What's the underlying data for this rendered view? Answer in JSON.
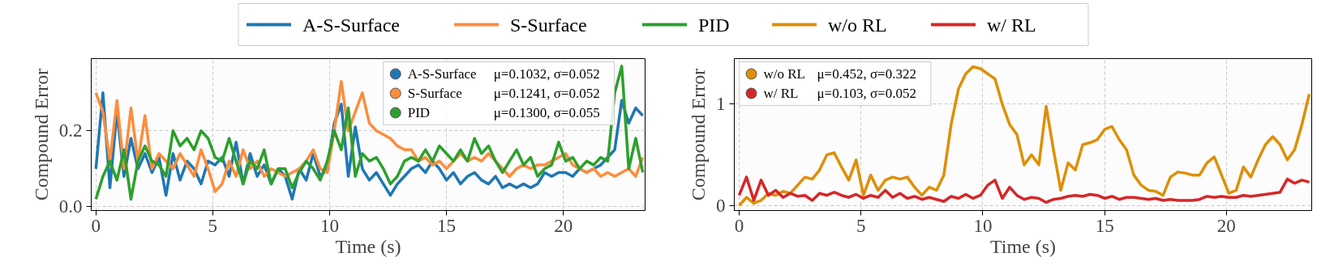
{
  "chart_data": [
    {
      "type": "line",
      "xlabel": "Time (s)",
      "ylabel": "Compound Error",
      "xlim": [
        -0.2,
        23.5
      ],
      "ylim": [
        -0.01,
        0.39
      ],
      "xticks": [
        0,
        5,
        10,
        15,
        20
      ],
      "yticks": [
        {
          "value": 0,
          "label": "0.0"
        },
        0.2
      ],
      "grid": true,
      "legend": "top right",
      "line_style": "solid",
      "annotations": [
        "μ=0.1032, σ=0.052",
        "μ=0.1241, σ=0.052",
        "μ=0.1300, σ=0.055"
      ],
      "x": [
        0,
        0.3,
        0.6,
        0.9,
        1.2,
        1.5,
        1.8,
        2.1,
        2.4,
        2.7,
        3.0,
        3.3,
        3.6,
        3.9,
        4.2,
        4.5,
        4.8,
        5.1,
        5.4,
        5.7,
        6.0,
        6.3,
        6.6,
        6.9,
        7.2,
        7.5,
        7.8,
        8.1,
        8.4,
        8.7,
        9.0,
        9.3,
        9.6,
        9.9,
        10.2,
        10.5,
        10.8,
        11.1,
        11.4,
        11.7,
        12.0,
        12.3,
        12.6,
        12.9,
        13.2,
        13.5,
        13.8,
        14.1,
        14.4,
        14.7,
        15.0,
        15.3,
        15.6,
        15.9,
        16.2,
        16.5,
        16.8,
        17.1,
        17.4,
        17.7,
        18.0,
        18.3,
        18.6,
        18.9,
        19.2,
        19.5,
        19.8,
        20.1,
        20.4,
        20.7,
        21.0,
        21.3,
        21.6,
        21.9,
        22.2,
        22.5,
        22.8,
        23.1,
        23.4
      ],
      "series": [
        {
          "name": "A-S-Surface",
          "color": "#1f77b4",
          "values": [
            0.1,
            0.3,
            0.05,
            0.25,
            0.08,
            0.18,
            0.1,
            0.14,
            0.09,
            0.13,
            0.03,
            0.14,
            0.07,
            0.12,
            0.1,
            0.06,
            0.12,
            0.11,
            0.13,
            0.08,
            0.17,
            0.06,
            0.14,
            0.08,
            0.11,
            0.06,
            0.1,
            0.08,
            0.02,
            0.1,
            0.07,
            0.14,
            0.08,
            0.1,
            0.22,
            0.27,
            0.08,
            0.21,
            0.1,
            0.07,
            0.09,
            0.06,
            0.03,
            0.06,
            0.08,
            0.1,
            0.11,
            0.09,
            0.12,
            0.1,
            0.07,
            0.09,
            0.06,
            0.08,
            0.09,
            0.07,
            0.06,
            0.08,
            0.05,
            0.06,
            0.05,
            0.06,
            0.05,
            0.06,
            0.09,
            0.08,
            0.09,
            0.09,
            0.08,
            0.1,
            0.09,
            0.1,
            0.11,
            0.13,
            0.15,
            0.28,
            0.22,
            0.26,
            0.24
          ]
        },
        {
          "name": "S-Surface",
          "color": "#fd8d3c",
          "values": [
            0.3,
            0.25,
            0.12,
            0.28,
            0.1,
            0.26,
            0.12,
            0.24,
            0.1,
            0.14,
            0.12,
            0.1,
            0.14,
            0.11,
            0.08,
            0.15,
            0.1,
            0.04,
            0.06,
            0.12,
            0.08,
            0.15,
            0.1,
            0.12,
            0.08,
            0.1,
            0.09,
            0.08,
            0.09,
            0.1,
            0.12,
            0.15,
            0.1,
            0.09,
            0.2,
            0.33,
            0.2,
            0.25,
            0.3,
            0.22,
            0.2,
            0.19,
            0.18,
            0.16,
            0.15,
            0.15,
            0.12,
            0.13,
            0.11,
            0.12,
            0.1,
            0.12,
            0.14,
            0.12,
            0.13,
            0.12,
            0.14,
            0.12,
            0.1,
            0.08,
            0.1,
            0.11,
            0.1,
            0.11,
            0.11,
            0.12,
            0.13,
            0.14,
            0.11,
            0.1,
            0.09,
            0.1,
            0.08,
            0.09,
            0.08,
            0.09,
            0.1,
            0.08,
            0.13
          ]
        },
        {
          "name": "PID",
          "color": "#2ca02c",
          "values": [
            0.02,
            0.08,
            0.12,
            0.07,
            0.15,
            0.02,
            0.12,
            0.16,
            0.12,
            0.11,
            0.08,
            0.2,
            0.16,
            0.18,
            0.15,
            0.2,
            0.18,
            0.13,
            0.12,
            0.18,
            0.12,
            0.06,
            0.12,
            0.1,
            0.15,
            0.06,
            0.1,
            0.1,
            0.05,
            0.09,
            0.12,
            0.1,
            0.07,
            0.12,
            0.2,
            0.15,
            0.26,
            0.08,
            0.14,
            0.12,
            0.13,
            0.1,
            0.06,
            0.08,
            0.12,
            0.13,
            0.12,
            0.15,
            0.12,
            0.16,
            0.14,
            0.12,
            0.15,
            0.12,
            0.18,
            0.14,
            0.16,
            0.12,
            0.09,
            0.12,
            0.15,
            0.11,
            0.13,
            0.08,
            0.1,
            0.11,
            0.17,
            0.12,
            0.13,
            0.1,
            0.12,
            0.11,
            0.13,
            0.12,
            0.3,
            0.37,
            0.1,
            0.18,
            0.09
          ]
        }
      ]
    },
    {
      "type": "line",
      "xlabel": "Time (s)",
      "ylabel": "Compound Error",
      "xlim": [
        -0.2,
        23.5
      ],
      "ylim": [
        -0.05,
        1.45
      ],
      "xticks": [
        0,
        5,
        10,
        15,
        20
      ],
      "yticks": [
        0,
        1
      ],
      "grid": true,
      "legend": "top left",
      "line_style": "solid",
      "annotations": [
        "μ=0.452, σ=0.322",
        "μ=0.103, σ=0.052"
      ],
      "x": [
        0,
        0.3,
        0.6,
        0.9,
        1.2,
        1.5,
        1.8,
        2.1,
        2.4,
        2.7,
        3.0,
        3.3,
        3.6,
        3.9,
        4.2,
        4.5,
        4.8,
        5.1,
        5.4,
        5.7,
        6.0,
        6.3,
        6.6,
        6.9,
        7.2,
        7.5,
        7.8,
        8.1,
        8.4,
        8.7,
        9.0,
        9.3,
        9.6,
        9.9,
        10.2,
        10.5,
        10.8,
        11.1,
        11.4,
        11.7,
        12.0,
        12.3,
        12.6,
        12.9,
        13.2,
        13.5,
        13.8,
        14.1,
        14.4,
        14.7,
        15.0,
        15.3,
        15.6,
        15.9,
        16.2,
        16.5,
        16.8,
        17.1,
        17.4,
        17.7,
        18.0,
        18.3,
        18.6,
        18.9,
        19.2,
        19.5,
        19.8,
        20.1,
        20.4,
        20.7,
        21.0,
        21.3,
        21.6,
        21.9,
        22.2,
        22.5,
        22.8,
        23.1,
        23.4
      ],
      "series": [
        {
          "name": "w/o RL",
          "color": "#de8f05",
          "values": [
            0.0,
            0.08,
            0.02,
            0.05,
            0.12,
            0.1,
            0.14,
            0.12,
            0.2,
            0.28,
            0.26,
            0.35,
            0.5,
            0.52,
            0.38,
            0.25,
            0.45,
            0.1,
            0.3,
            0.15,
            0.25,
            0.28,
            0.26,
            0.28,
            0.18,
            0.1,
            0.18,
            0.15,
            0.3,
            0.8,
            1.15,
            1.3,
            1.37,
            1.35,
            1.3,
            1.25,
            1.0,
            0.8,
            0.7,
            0.4,
            0.5,
            0.4,
            0.98,
            0.55,
            0.15,
            0.42,
            0.35,
            0.6,
            0.62,
            0.65,
            0.75,
            0.78,
            0.65,
            0.55,
            0.3,
            0.2,
            0.15,
            0.14,
            0.1,
            0.28,
            0.33,
            0.32,
            0.3,
            0.3,
            0.42,
            0.48,
            0.3,
            0.12,
            0.15,
            0.38,
            0.28,
            0.45,
            0.6,
            0.68,
            0.6,
            0.45,
            0.55,
            0.8,
            1.1
          ]
        },
        {
          "name": "w/ RL",
          "color": "#d62728",
          "values": [
            0.1,
            0.28,
            0.05,
            0.25,
            0.1,
            0.15,
            0.08,
            0.12,
            0.09,
            0.1,
            0.05,
            0.12,
            0.1,
            0.13,
            0.1,
            0.08,
            0.11,
            0.07,
            0.1,
            0.08,
            0.15,
            0.08,
            0.12,
            0.07,
            0.09,
            0.06,
            0.08,
            0.06,
            0.04,
            0.09,
            0.07,
            0.11,
            0.07,
            0.1,
            0.2,
            0.25,
            0.07,
            0.18,
            0.1,
            0.06,
            0.08,
            0.07,
            0.03,
            0.06,
            0.07,
            0.09,
            0.1,
            0.09,
            0.11,
            0.1,
            0.07,
            0.09,
            0.06,
            0.08,
            0.08,
            0.07,
            0.06,
            0.07,
            0.05,
            0.06,
            0.05,
            0.05,
            0.05,
            0.06,
            0.09,
            0.08,
            0.09,
            0.08,
            0.08,
            0.1,
            0.09,
            0.1,
            0.11,
            0.12,
            0.13,
            0.26,
            0.22,
            0.25,
            0.23
          ]
        }
      ]
    }
  ]
}
